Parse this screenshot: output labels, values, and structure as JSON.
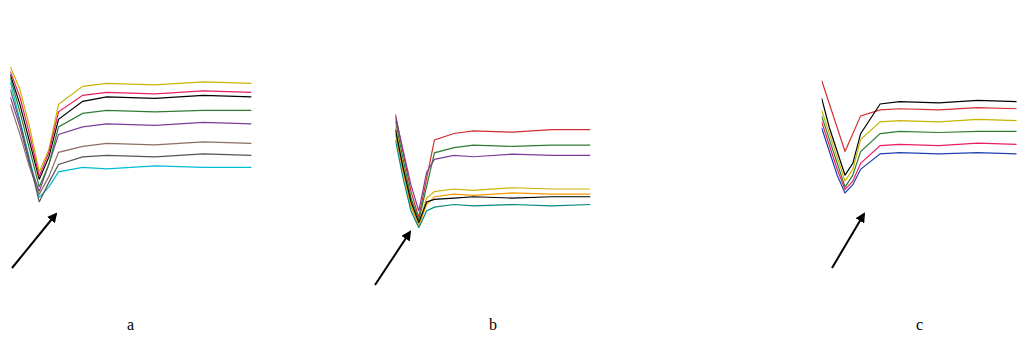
{
  "chart_data": [
    {
      "type": "line",
      "title": "a",
      "tick_labels": false,
      "grid": false,
      "x": [
        0,
        0.4,
        0.8,
        1.2,
        1.6,
        2,
        3,
        4,
        6,
        8,
        10
      ],
      "xlim": [
        0,
        10
      ],
      "ylim": [
        0,
        100
      ],
      "series": [
        {
          "color": "#000000",
          "values": [
            90,
            70,
            45,
            20,
            35,
            60,
            72,
            75,
            74,
            76,
            75
          ]
        },
        {
          "color": "#00bcd4",
          "values": [
            85,
            60,
            35,
            8,
            15,
            25,
            28,
            27,
            29,
            28,
            28
          ]
        },
        {
          "color": "#c8b400",
          "values": [
            95,
            80,
            55,
            25,
            40,
            70,
            82,
            84,
            83,
            85,
            84
          ]
        },
        {
          "color": "#7a3d99",
          "values": [
            75,
            55,
            30,
            12,
            30,
            50,
            55,
            57,
            56,
            58,
            57
          ]
        },
        {
          "color": "#2e7d32",
          "values": [
            88,
            65,
            40,
            15,
            30,
            55,
            64,
            66,
            65,
            66,
            66
          ]
        },
        {
          "color": "#8d6e63",
          "values": [
            70,
            50,
            28,
            10,
            22,
            38,
            42,
            44,
            43,
            45,
            44
          ]
        },
        {
          "color": "#e91e63",
          "values": [
            92,
            75,
            50,
            22,
            38,
            65,
            76,
            78,
            77,
            79,
            78
          ]
        },
        {
          "color": "#555555",
          "values": [
            80,
            58,
            32,
            5,
            18,
            30,
            35,
            36,
            35,
            37,
            36
          ]
        }
      ]
    },
    {
      "type": "line",
      "title": "b",
      "tick_labels": false,
      "grid": false,
      "x": [
        0,
        0.4,
        0.8,
        1.2,
        1.6,
        2,
        3,
        4,
        6,
        8,
        10
      ],
      "xlim": [
        0,
        10
      ],
      "ylim": [
        0,
        100
      ],
      "series": [
        {
          "color": "#d32f2f",
          "values": [
            90,
            60,
            30,
            10,
            40,
            70,
            75,
            77,
            76,
            78,
            78
          ]
        },
        {
          "color": "#c8b400",
          "values": [
            80,
            50,
            20,
            5,
            25,
            30,
            32,
            31,
            33,
            32,
            32
          ]
        },
        {
          "color": "#2e7d32",
          "values": [
            85,
            55,
            25,
            8,
            35,
            60,
            64,
            66,
            65,
            66,
            66
          ]
        },
        {
          "color": "#ff9800",
          "values": [
            75,
            45,
            18,
            4,
            20,
            26,
            28,
            27,
            29,
            28,
            28
          ]
        },
        {
          "color": "#7a3d99",
          "values": [
            88,
            62,
            35,
            15,
            45,
            55,
            58,
            57,
            59,
            58,
            58
          ]
        },
        {
          "color": "#000000",
          "values": [
            78,
            48,
            22,
            6,
            22,
            24,
            25,
            26,
            25,
            26,
            26
          ]
        },
        {
          "color": "#00897b",
          "values": [
            70,
            40,
            15,
            2,
            15,
            18,
            20,
            19,
            20,
            19,
            20
          ]
        }
      ]
    },
    {
      "type": "line",
      "title": "c",
      "tick_labels": false,
      "grid": false,
      "x": [
        0,
        0.4,
        0.8,
        1.2,
        1.6,
        2,
        3,
        4,
        6,
        8,
        10
      ],
      "xlim": [
        0,
        10
      ],
      "ylim": [
        0,
        100
      ],
      "series": [
        {
          "color": "#d32f2f",
          "values": [
            100,
            80,
            60,
            40,
            55,
            70,
            75,
            76,
            75,
            77,
            76
          ]
        },
        {
          "color": "#000000",
          "values": [
            85,
            60,
            40,
            20,
            30,
            55,
            80,
            82,
            81,
            83,
            82
          ]
        },
        {
          "color": "#2e7d32",
          "values": [
            70,
            50,
            30,
            10,
            20,
            40,
            55,
            57,
            56,
            57,
            57
          ]
        },
        {
          "color": "#e91e63",
          "values": [
            65,
            45,
            25,
            8,
            15,
            30,
            45,
            46,
            45,
            47,
            46
          ]
        },
        {
          "color": "#c8b400",
          "values": [
            75,
            55,
            35,
            15,
            25,
            50,
            65,
            66,
            65,
            67,
            66
          ]
        },
        {
          "color": "#1e40af",
          "values": [
            60,
            40,
            20,
            5,
            12,
            25,
            38,
            39,
            38,
            39,
            38
          ]
        }
      ]
    }
  ]
}
